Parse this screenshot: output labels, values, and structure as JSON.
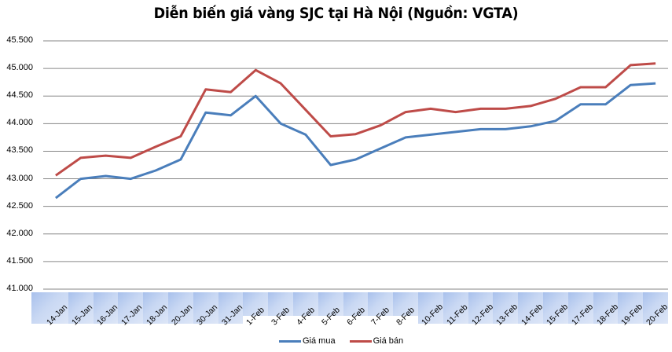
{
  "chart_data": {
    "type": "line",
    "title": "Diễn biến giá vàng SJC tại Hà Nội (Nguồn: VGTA)",
    "xlabel": "",
    "ylabel": "",
    "ylim": [
      41000,
      45500
    ],
    "y_ticks": [
      "45.500",
      "45.000",
      "44.500",
      "44.000",
      "43.500",
      "43.000",
      "42.500",
      "42.000",
      "41.500",
      "41.000"
    ],
    "grid": true,
    "legend_position": "bottom",
    "categories": [
      "14-Jan",
      "15-Jan",
      "16-Jan",
      "17-Jan",
      "18-Jan",
      "20-Jan",
      "30-Jan",
      "31-Jan",
      "1-Feb",
      "3-Feb",
      "4-Feb",
      "5-Feb",
      "6-Feb",
      "7-Feb",
      "8-Feb",
      "10-Feb",
      "11-Feb",
      "12-Feb",
      "13-Feb",
      "14-Feb",
      "15-Feb",
      "17-Feb",
      "18-Feb",
      "19-Feb",
      "20-Feb"
    ],
    "series": [
      {
        "name": "Giá mua",
        "color": "#4a7ebb",
        "values": [
          42650,
          43000,
          43050,
          43000,
          43150,
          43350,
          44200,
          44150,
          44500,
          44000,
          43800,
          43250,
          43350,
          43550,
          43750,
          43800,
          43850,
          43900,
          43900,
          43950,
          44050,
          44350,
          44350,
          44700,
          44730
        ]
      },
      {
        "name": "Giá bán",
        "color": "#be4b48",
        "values": [
          43060,
          43380,
          43420,
          43380,
          43580,
          43770,
          44620,
          44570,
          44970,
          44730,
          44250,
          43770,
          43810,
          43970,
          44210,
          44270,
          44210,
          44270,
          44270,
          44320,
          44450,
          44660,
          44660,
          45060,
          45090
        ]
      }
    ]
  },
  "legend": {
    "items": [
      {
        "label": "Giá mua",
        "color": "#4a7ebb"
      },
      {
        "label": "Giá bán",
        "color": "#be4b48"
      }
    ]
  }
}
